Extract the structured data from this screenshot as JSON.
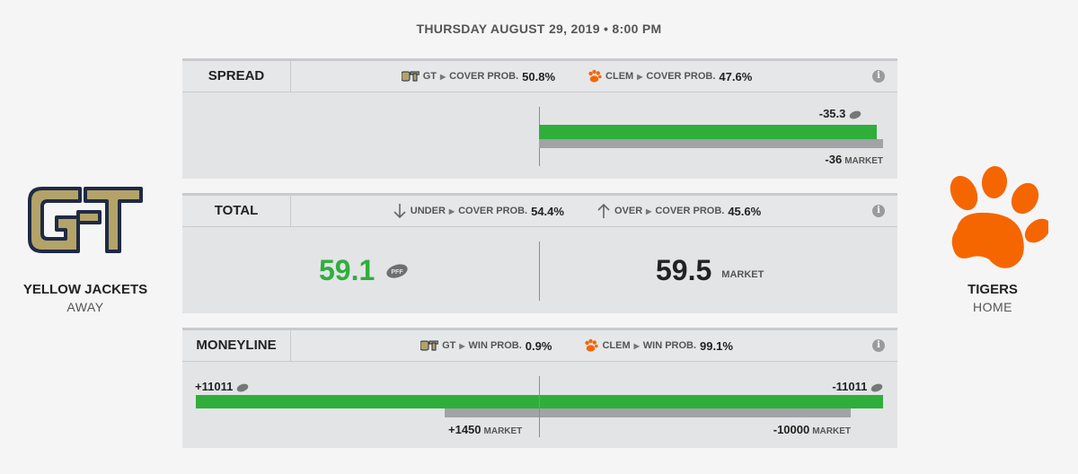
{
  "header": {
    "datetime": "THURSDAY AUGUST 29, 2019 • 8:00 PM"
  },
  "away": {
    "name": "YELLOW JACKETS",
    "side": "AWAY",
    "abbr": "GT",
    "color": "#b3a369"
  },
  "home": {
    "name": "TIGERS",
    "side": "HOME",
    "abbr": "CLEM",
    "color": "#f56600"
  },
  "spread": {
    "label": "SPREAD",
    "gt_label": "GT",
    "gt_prob_label": "COVER PROB.",
    "gt_prob": "50.8%",
    "clem_label": "CLEM",
    "clem_prob_label": "COVER PROB.",
    "clem_prob": "47.6%",
    "pff_value": "-35.3",
    "market_value": "-36",
    "market_label": "MARKET"
  },
  "total": {
    "label": "TOTAL",
    "under_label": "UNDER",
    "under_prob_label": "COVER PROB.",
    "under_prob": "54.4%",
    "over_label": "OVER",
    "over_prob_label": "COVER PROB.",
    "over_prob": "45.6%",
    "pff_value": "59.1",
    "market_value": "59.5",
    "market_label": "MARKET"
  },
  "moneyline": {
    "label": "MONEYLINE",
    "gt_label": "GT",
    "gt_prob_label": "WIN PROB.",
    "gt_prob": "0.9%",
    "clem_label": "CLEM",
    "clem_prob_label": "WIN PROB.",
    "clem_prob": "99.1%",
    "gt_pff": "+11011",
    "clem_pff": "-11011",
    "gt_market": "+1450",
    "clem_market": "-10000",
    "market_label": "MARKET"
  },
  "colors": {
    "green": "#2fae3c",
    "gray": "#a1a3a6",
    "accent_green": "#2fae3c"
  },
  "icons": {
    "info": "i"
  }
}
